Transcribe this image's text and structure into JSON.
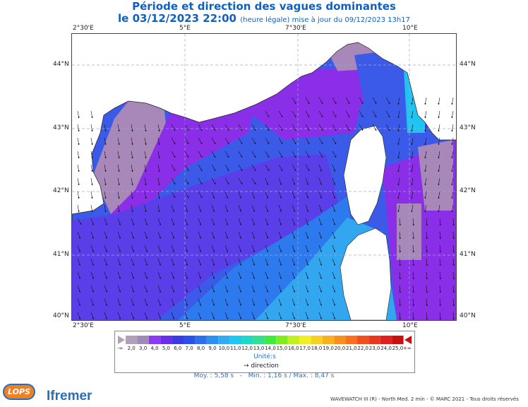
{
  "header": {
    "title": "Période et direction des vagues dominantes",
    "date_label": "le 03/12/2023 22:00",
    "update_label": "(heure légale) mise à jour du 09/12/2023 13h17"
  },
  "axes": {
    "lon_labels": [
      "2°30'E",
      "5°E",
      "7°30'E",
      "10°E"
    ],
    "lat_labels": [
      "44°N",
      "43°N",
      "42°N",
      "41°N",
      "40°N"
    ]
  },
  "legend": {
    "values": [
      "2,0",
      "3,0",
      "4,0",
      "5,0",
      "6,0",
      "7,0",
      "8,0",
      "9,0",
      "10,0",
      "11,0",
      "12,0",
      "13,0",
      "14,0",
      "15,0",
      "16,0",
      "17,0",
      "18,0",
      "19,0",
      "20,0",
      "21,0",
      "22,0",
      "23,0",
      "24,0",
      "25,0"
    ],
    "minus_inf": "-∞",
    "plus_inf": "+∞",
    "colors": [
      "#b0a0b8",
      "#a088b8",
      "#8c3cf0",
      "#6a2ee8",
      "#3c3ae4",
      "#2c50e8",
      "#2c70ea",
      "#2c90ee",
      "#30acf0",
      "#20c8f0",
      "#20d8c8",
      "#30e090",
      "#40e840",
      "#80ec20",
      "#c0f020",
      "#f0f020",
      "#f8d020",
      "#f8b020",
      "#f89020",
      "#f87020",
      "#f05020",
      "#e83820",
      "#e02020",
      "#c81010"
    ],
    "unit_label": "Unité:s",
    "direction_label": "direction",
    "arrow_glyph": "→"
  },
  "stats": {
    "mean": "Moy. : 5,58 s",
    "minmax": "Min. : 1,16 s / Max. : 8,47 s"
  },
  "footer": {
    "credit": "WAVEWATCH III (R) - North Med. 2 min - © MARC 2021 - Tous droits réservés",
    "lops_logo": "LOPS",
    "ifremer_logo": "Ifremer"
  },
  "map_colors": {
    "land": "#ffffff",
    "grey_purple": "#a888b8",
    "violet": "#8a2ee8",
    "indigo": "#5a3ee8",
    "blue": "#3c5ae8",
    "mid_blue": "#2c7aee",
    "light_blue": "#33a6f0",
    "cyan": "#20c4f0"
  }
}
